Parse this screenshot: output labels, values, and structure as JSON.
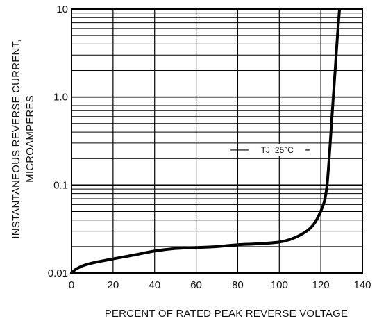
{
  "chart_data": {
    "type": "line",
    "xlabel": "PERCENT OF RATED PEAK REVERSE VOLTAGE",
    "ylabel": [
      "INSTANTANEOUS REVERSE CURRENT,",
      "MICROAMPERES"
    ],
    "xlim": [
      0,
      140
    ],
    "ylim": [
      0.01,
      10
    ],
    "yscale": "log",
    "x_ticks": [
      0,
      20,
      40,
      60,
      80,
      100,
      120,
      140
    ],
    "x_tick_labels": [
      "0",
      "20",
      "40",
      "60",
      "80",
      "100",
      "120",
      "140"
    ],
    "y_ticks": [
      0.01,
      0.1,
      1,
      10
    ],
    "y_tick_labels": [
      "0.01",
      "0.1",
      "1.0",
      "10"
    ],
    "grid": true,
    "annotation": {
      "text": "TJ=25°C",
      "x": 114,
      "y": 0.25
    },
    "series": [
      {
        "color": "#000000",
        "x": [
          0,
          2,
          5,
          10,
          20,
          30,
          40,
          50,
          60,
          70,
          80,
          90,
          100,
          105,
          110,
          114,
          117,
          119,
          121,
          122,
          123,
          124,
          125,
          126,
          127,
          128,
          129
        ],
        "y": [
          0.01,
          0.011,
          0.012,
          0.013,
          0.0145,
          0.016,
          0.0178,
          0.019,
          0.0195,
          0.02,
          0.021,
          0.0215,
          0.0225,
          0.024,
          0.027,
          0.031,
          0.037,
          0.045,
          0.058,
          0.07,
          0.1,
          0.2,
          0.45,
          1.0,
          2.2,
          5.0,
          10.0
        ]
      }
    ]
  }
}
